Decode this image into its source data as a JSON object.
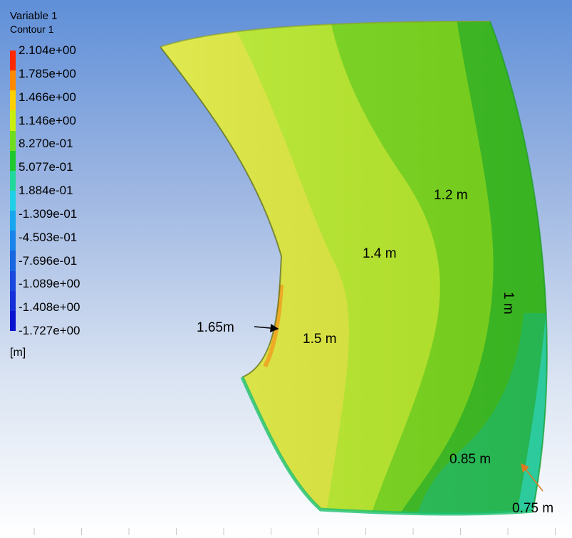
{
  "legend": {
    "variable": "Variable 1",
    "contour": "Contour 1",
    "units": "[m]",
    "ticks": [
      "2.104e+00",
      "1.785e+00",
      "1.466e+00",
      "1.146e+00",
      "8.270e-01",
      "5.077e-01",
      "1.884e-01",
      "-1.309e-01",
      "-4.503e-01",
      "-7.696e-01",
      "-1.089e+00",
      "-1.408e+00",
      "-1.727e+00"
    ],
    "colors": [
      "#ff2a00",
      "#ff8a00",
      "#ffd000",
      "#c8ee10",
      "#6fdc20",
      "#20c830",
      "#22d89a",
      "#20d0e6",
      "#18a6ee",
      "#1a84ea",
      "#1866e0",
      "#1848de",
      "#1430d8",
      "#0a14d0"
    ]
  },
  "annotations": {
    "c165": "1.65m",
    "c15": "1.5 m",
    "c14": "1.4 m",
    "c12": "1.2 m",
    "c1": "1 m",
    "c085": "0.85 m",
    "c075": "0.75 m"
  },
  "zone_colors": {
    "z150": "#dde83a",
    "z140": "#b8ea2a",
    "z120": "#7ad81c",
    "z100": "#3cbe22",
    "z085": "#28c056",
    "z075": "#2ed6a6",
    "edge_orange": "#f0a020",
    "arrow_orange": "#e07820"
  }
}
